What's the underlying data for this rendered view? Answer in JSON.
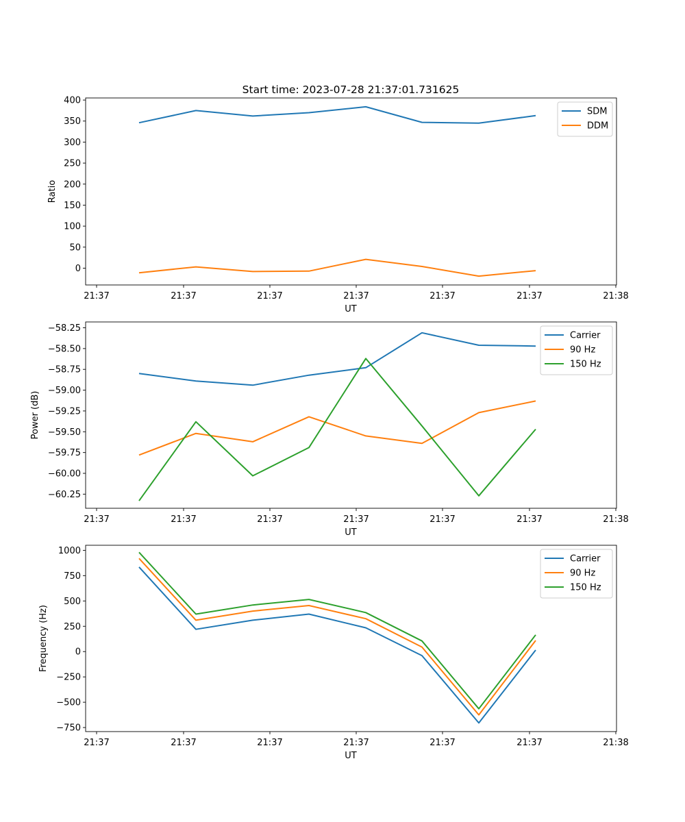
{
  "chart_data": [
    {
      "type": "line",
      "title": "Start time: 2023-07-28 21:37:01.731625",
      "xlabel": "UT",
      "ylabel": "Ratio",
      "x_tick_labels": [
        "21:37",
        "21:37",
        "21:37",
        "21:37",
        "21:37",
        "21:37",
        "21:38"
      ],
      "ylim": [
        -40,
        405
      ],
      "yticks": [
        0,
        50,
        100,
        150,
        200,
        250,
        300,
        350,
        400
      ],
      "ytick_labels": [
        "0",
        "50",
        "100",
        "150",
        "200",
        "250",
        "300",
        "350",
        "400"
      ],
      "legend_position": "top-right",
      "series": [
        {
          "name": "SDM",
          "color": "#1f77b4",
          "values": [
            346,
            375,
            362,
            370,
            384,
            347,
            345,
            363
          ]
        },
        {
          "name": "DDM",
          "color": "#ff7f0e",
          "values": [
            -11,
            3,
            -8,
            -7,
            21,
            4,
            -19,
            -6
          ]
        }
      ]
    },
    {
      "type": "line",
      "title": "",
      "xlabel": "UT",
      "ylabel": "Power (dB)",
      "x_tick_labels": [
        "21:37",
        "21:37",
        "21:37",
        "21:37",
        "21:37",
        "21:37",
        "21:38"
      ],
      "ylim": [
        -60.42,
        -58.18
      ],
      "yticks": [
        -60.25,
        -60.0,
        -59.75,
        -59.5,
        -59.25,
        -59.0,
        -58.75,
        -58.5,
        -58.25
      ],
      "ytick_labels": [
        "−60.25",
        "−60.00",
        "−59.75",
        "−59.50",
        "−59.25",
        "−59.00",
        "−58.75",
        "−58.50",
        "−58.25"
      ],
      "legend_position": "top-right",
      "series": [
        {
          "name": "Carrier",
          "color": "#1f77b4",
          "values": [
            -58.8,
            -58.89,
            -58.94,
            -58.82,
            -58.73,
            -58.31,
            -58.46,
            -58.47
          ]
        },
        {
          "name": "90 Hz",
          "color": "#ff7f0e",
          "values": [
            -59.78,
            -59.52,
            -59.62,
            -59.32,
            -59.55,
            -59.64,
            -59.27,
            -59.13
          ]
        },
        {
          "name": "150 Hz",
          "color": "#2ca02c",
          "values": [
            -60.33,
            -59.38,
            -60.03,
            -59.69,
            -58.62,
            -59.43,
            -60.27,
            -59.47
          ]
        }
      ]
    },
    {
      "type": "line",
      "title": "",
      "xlabel": "UT",
      "ylabel": "Frequency (Hz)",
      "x_tick_labels": [
        "21:37",
        "21:37",
        "21:37",
        "21:37",
        "21:37",
        "21:37",
        "21:38"
      ],
      "ylim": [
        -790,
        1050
      ],
      "yticks": [
        -750,
        -500,
        -250,
        0,
        250,
        500,
        750,
        1000
      ],
      "ytick_labels": [
        "−750",
        "−500",
        "−250",
        "0",
        "250",
        "500",
        "750",
        "1000"
      ],
      "legend_position": "top-right",
      "series": [
        {
          "name": "Carrier",
          "color": "#1f77b4",
          "values": [
            835,
            220,
            310,
            370,
            235,
            -40,
            -705,
            15
          ]
        },
        {
          "name": "90 Hz",
          "color": "#ff7f0e",
          "values": [
            920,
            310,
            400,
            455,
            325,
            45,
            -625,
            110
          ]
        },
        {
          "name": "150 Hz",
          "color": "#2ca02c",
          "values": [
            980,
            370,
            460,
            515,
            385,
            105,
            -565,
            165
          ]
        }
      ]
    }
  ]
}
